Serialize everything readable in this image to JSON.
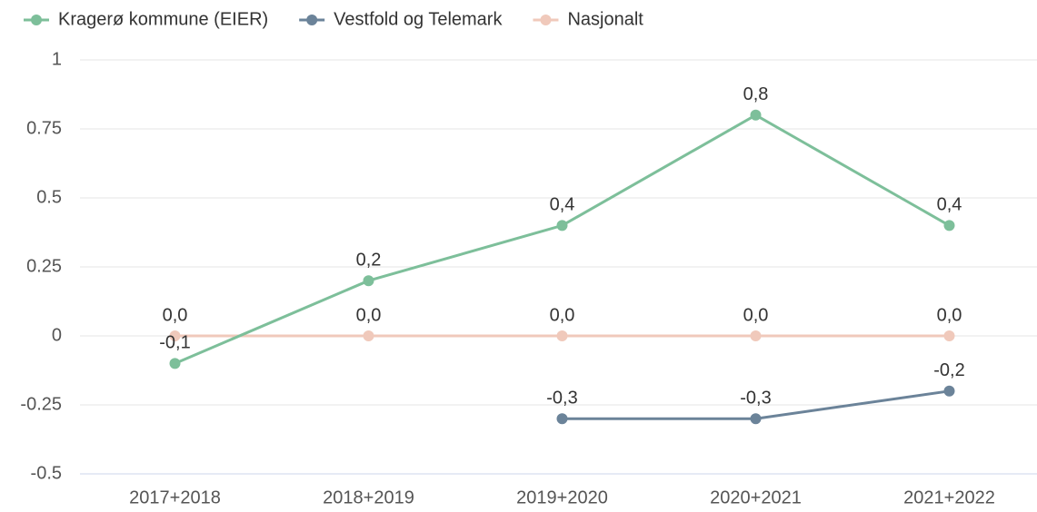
{
  "chart_data": {
    "type": "line",
    "categories": [
      "2017+2018",
      "2018+2019",
      "2019+2020",
      "2020+2021",
      "2021+2022"
    ],
    "series": [
      {
        "name": "Kragerø kommune (EIER)",
        "color": "#7dbf9a",
        "values": [
          -0.1,
          0.2,
          0.4,
          0.8,
          0.4
        ],
        "value_labels": [
          "-0,1",
          "0,2",
          "0,4",
          "0,8",
          "0,4"
        ]
      },
      {
        "name": "Vestfold og Telemark",
        "color": "#6b8399",
        "values": [
          null,
          null,
          -0.3,
          -0.3,
          -0.2
        ],
        "value_labels": [
          null,
          null,
          "-0,3",
          "-0,3",
          "-0,2"
        ]
      },
      {
        "name": "Nasjonalt",
        "color": "#f0c9bb",
        "values": [
          0,
          0,
          0,
          0,
          0
        ],
        "value_labels": [
          "0,0",
          "0,0",
          "0,0",
          "0,0",
          "0,0"
        ]
      }
    ],
    "ylim": [
      -0.5,
      1
    ],
    "yticks": [
      -0.5,
      -0.25,
      0,
      0.25,
      0.5,
      0.75,
      1
    ],
    "grid": true
  }
}
